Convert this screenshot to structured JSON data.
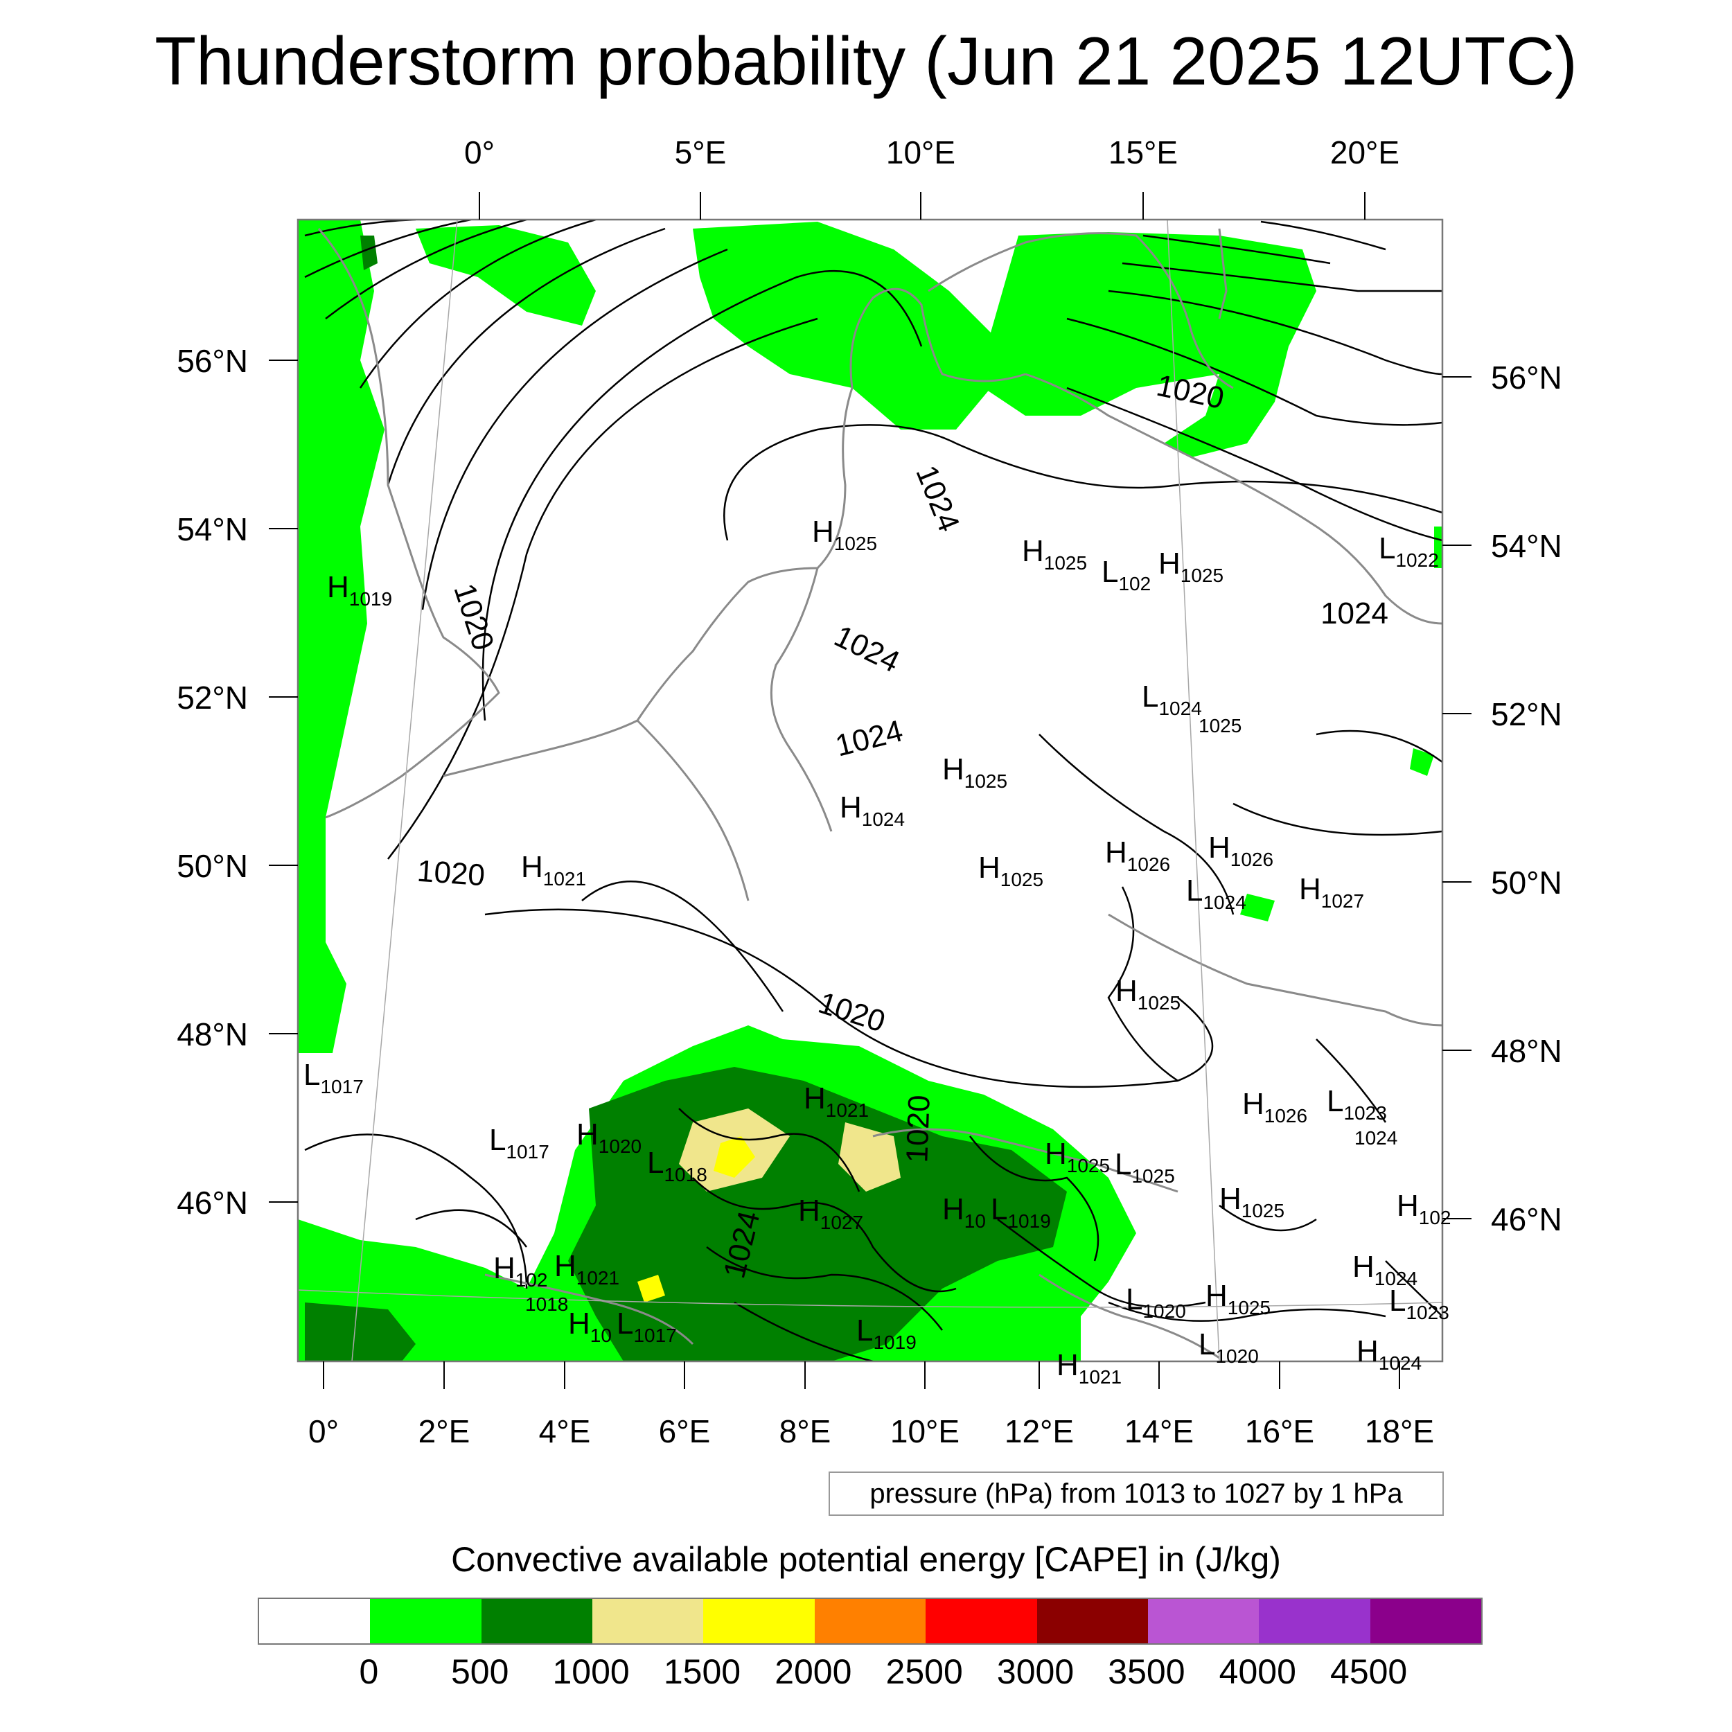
{
  "title": "Thunderstorm probability (Jun 21 2025 12UTC)",
  "map": {
    "region": "Central Europe",
    "top_axis_labels": [
      "0°",
      "5°E",
      "10°E",
      "15°E",
      "20°E"
    ],
    "bottom_axis_labels": [
      "0°",
      "2°E",
      "4°E",
      "6°E",
      "8°E",
      "10°E",
      "12°E",
      "14°E",
      "16°E",
      "18°E"
    ],
    "left_axis_labels": [
      "56°N",
      "54°N",
      "52°N",
      "50°N",
      "48°N",
      "46°N"
    ],
    "right_axis_labels": [
      "56°N",
      "54°N",
      "52°N",
      "50°N",
      "48°N",
      "46°N"
    ],
    "isobar_labels": [
      "1020",
      "1020",
      "1020",
      "1020",
      "1024",
      "1024",
      "1024",
      "1024",
      "1024",
      "1020",
      "1024"
    ],
    "pressure_centers": [
      {
        "type": "H",
        "value": "1019"
      },
      {
        "type": "H",
        "value": "1025"
      },
      {
        "type": "H",
        "value": "1025"
      },
      {
        "type": "L",
        "value": "102"
      },
      {
        "type": "H",
        "value": "1025"
      },
      {
        "type": "L",
        "value": "1022"
      },
      {
        "type": "L",
        "value": "1024"
      },
      {
        "type": "",
        "value": "1025"
      },
      {
        "type": "H",
        "value": "1025"
      },
      {
        "type": "H",
        "value": "1024"
      },
      {
        "type": "H",
        "value": "1021"
      },
      {
        "type": "H",
        "value": "1025"
      },
      {
        "type": "H",
        "value": "1026"
      },
      {
        "type": "H",
        "value": "1026"
      },
      {
        "type": "L",
        "value": "1024"
      },
      {
        "type": "H",
        "value": "1027"
      },
      {
        "type": "H",
        "value": "1025"
      },
      {
        "type": "L",
        "value": "1017"
      },
      {
        "type": "H",
        "value": "1021"
      },
      {
        "type": "L",
        "value": "1017"
      },
      {
        "type": "H",
        "value": "1020"
      },
      {
        "type": "L",
        "value": "1018"
      },
      {
        "type": "H",
        "value": "1027"
      },
      {
        "type": "H",
        "value": "10"
      },
      {
        "type": "L",
        "value": "1019"
      },
      {
        "type": "H",
        "value": "1025"
      },
      {
        "type": "L",
        "value": "1025"
      },
      {
        "type": "H",
        "value": "1026"
      },
      {
        "type": "L",
        "value": "1023"
      },
      {
        "type": "",
        "value": "1024"
      },
      {
        "type": "H",
        "value": "1025"
      },
      {
        "type": "H",
        "value": "102"
      },
      {
        "type": "H",
        "value": "102"
      },
      {
        "type": "H",
        "value": "1021"
      },
      {
        "type": "",
        "value": "1018"
      },
      {
        "type": "H",
        "value": "10"
      },
      {
        "type": "L",
        "value": "1017"
      },
      {
        "type": "L",
        "value": "1019"
      },
      {
        "type": "H",
        "value": "1024"
      },
      {
        "type": "L",
        "value": "1020"
      },
      {
        "type": "H",
        "value": "1025"
      },
      {
        "type": "L",
        "value": "1023"
      },
      {
        "type": "L",
        "value": "1020"
      },
      {
        "type": "H",
        "value": "1024"
      },
      {
        "type": "H",
        "value": "1021"
      }
    ]
  },
  "contour_info": "pressure (hPa) from 1013 to 1027 by 1 hPa",
  "colorbar": {
    "title": "Convective available potential energy [CAPE] in (J/kg)",
    "colors": [
      "#ffffff",
      "#00ff00",
      "#008000",
      "#f0e68c",
      "#ffff00",
      "#ff8000",
      "#ff0000",
      "#8b0000",
      "#ba55d3",
      "#9932cc",
      "#8b008b"
    ],
    "ticks": [
      "0",
      "500",
      "1000",
      "1500",
      "2000",
      "2500",
      "3000",
      "3500",
      "4000",
      "4500"
    ]
  }
}
